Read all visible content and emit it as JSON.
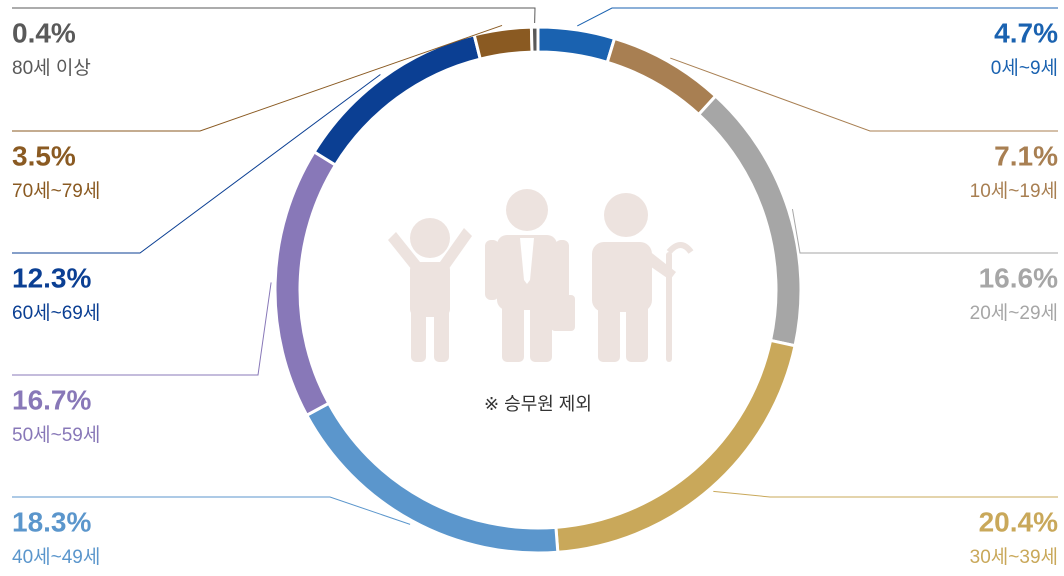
{
  "chart_data": {
    "type": "pie",
    "donut": true,
    "categories": [
      "0세~9세",
      "10세~19세",
      "20세~29세",
      "30세~39세",
      "40세~49세",
      "50세~59세",
      "60세~69세",
      "70세~79세",
      "80세 이상"
    ],
    "values": [
      4.7,
      7.1,
      16.6,
      20.4,
      18.3,
      16.7,
      12.3,
      3.5,
      0.4
    ],
    "value_labels": [
      "4.7%",
      "7.1%",
      "16.6%",
      "20.4%",
      "18.3%",
      "16.7%",
      "12.3%",
      "3.5%",
      "0.4%"
    ],
    "colors": [
      "#1a62b0",
      "#a87f52",
      "#a6a6a6",
      "#c9a85a",
      "#5b96cc",
      "#8878b8",
      "#0b3f93",
      "#8a5a22",
      "#595959"
    ],
    "annotation": "※ 승무원 제외"
  }
}
